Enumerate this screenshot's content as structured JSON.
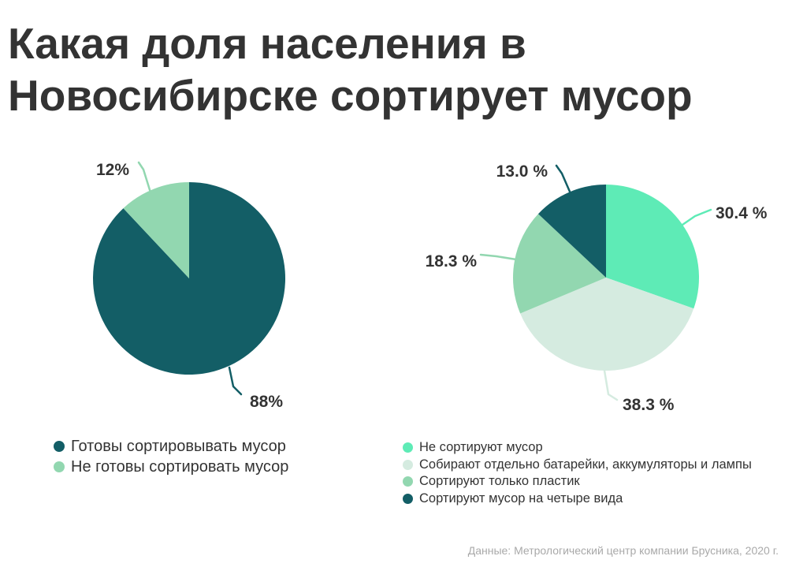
{
  "title": "Какая доля населения в Новосибирске сортирует мусор",
  "source": "Данные: Метрологический центр компании Брусника, 2020 г.",
  "chart_data": [
    {
      "type": "pie",
      "start_angle_deg": 0,
      "slices": [
        {
          "label": "Готовы сортировывать мусор",
          "value": 88,
          "data_label": "88%",
          "color": "#135e66"
        },
        {
          "label": "Не готовы сортировать мусор",
          "value": 12,
          "data_label": "12%",
          "color": "#92d7b0"
        }
      ],
      "legend_position": "bottom-left"
    },
    {
      "type": "pie",
      "start_angle_deg": 0,
      "slices": [
        {
          "label": "Не сортируют мусор",
          "value": 30.4,
          "data_label": "30.4 %",
          "color": "#5eebb6"
        },
        {
          "label": "Собирают отдельно батарейки, аккумуляторы и лампы",
          "value": 38.3,
          "data_label": "38.3 %",
          "color": "#d5ebe0"
        },
        {
          "label": "Сортируют только пластик",
          "value": 18.3,
          "data_label": "18.3 %",
          "color": "#92d7b0"
        },
        {
          "label": "Сортируют мусор на четыре вида",
          "value": 13.0,
          "data_label": "13.0 %",
          "color": "#135e66"
        }
      ],
      "legend_position": "bottom-right"
    }
  ]
}
